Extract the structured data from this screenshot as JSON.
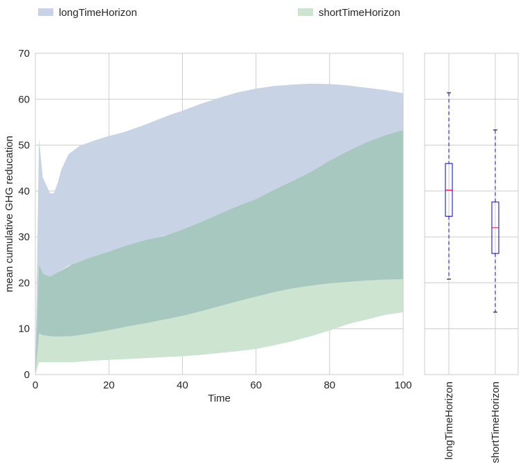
{
  "legend": {
    "placement": "top",
    "items": [
      {
        "label": "longTimeHorizon",
        "color": "#c8d3e6"
      },
      {
        "label": "shortTimeHorizon",
        "color": "#cce4d0"
      }
    ]
  },
  "chart_data": [
    {
      "type": "area",
      "xlabel": "Time",
      "ylabel": "mean cumulative GHG reducation",
      "xlim": [
        0,
        100
      ],
      "ylim": [
        0,
        70
      ],
      "xticks": [
        0,
        20,
        40,
        60,
        80,
        100
      ],
      "yticks": [
        0,
        10,
        20,
        30,
        40,
        50,
        60,
        70
      ],
      "grid": true,
      "colors": {
        "longTimeHorizon": "#c8d3e6",
        "shortTimeHorizon": "#cce4d0",
        "overlap": "#a6c8bf"
      },
      "series": [
        {
          "name": "longTimeHorizon",
          "x": [
            0,
            1,
            2,
            4,
            5,
            6,
            7,
            9,
            12,
            16,
            20,
            24,
            30,
            36,
            40,
            45,
            50,
            55,
            60,
            65,
            70,
            75,
            80,
            85,
            90,
            95,
            100
          ],
          "upper": [
            0,
            51.5,
            43,
            39.5,
            39.5,
            41.5,
            44.5,
            48,
            49.8,
            51,
            52,
            52.8,
            54.5,
            56.4,
            57.5,
            59,
            60.3,
            61.5,
            62.3,
            62.9,
            63.2,
            63.4,
            63.3,
            63,
            62.5,
            62,
            61.3
          ],
          "lower": [
            0,
            24,
            22,
            21.3,
            21.3,
            22,
            22.7,
            23.7,
            24.6,
            25.7,
            26.8,
            27.8,
            29.2,
            30.5,
            31.6,
            33.2,
            35,
            36.7,
            38.2,
            40.3,
            42.2,
            44.2,
            46.6,
            48.7,
            50.6,
            52.1,
            53.3
          ]
        },
        {
          "name": "shortTimeHorizon",
          "x": [
            0,
            1,
            2,
            4,
            6,
            10,
            15,
            20,
            25,
            30,
            35,
            40,
            45,
            50,
            55,
            60,
            65,
            70,
            75,
            80,
            85,
            90,
            95,
            100
          ],
          "upper": [
            0,
            24,
            22,
            21.3,
            22.2,
            24,
            25.5,
            26.8,
            28.2,
            29.3,
            30.2,
            31.6,
            33.2,
            35,
            36.7,
            38.2,
            40.3,
            42.2,
            44.2,
            46.6,
            48.7,
            50.6,
            52.1,
            53.3
          ],
          "mid": [
            0,
            9,
            8.6,
            8.4,
            8.3,
            8.4,
            9,
            9.7,
            10.5,
            11.2,
            12,
            12.8,
            13.8,
            14.9,
            16,
            17,
            18,
            18.8,
            19.4,
            19.9,
            20.2,
            20.5,
            20.7,
            20.8
          ],
          "lower": [
            0,
            2.7,
            2.7,
            2.7,
            2.7,
            2.7,
            3,
            3.2,
            3.4,
            3.6,
            3.8,
            4,
            4.3,
            4.7,
            5.1,
            5.6,
            6.4,
            7.3,
            8.4,
            9.6,
            11,
            12,
            13,
            13.6
          ]
        }
      ]
    },
    {
      "type": "box",
      "ylim": [
        0,
        70
      ],
      "categories": [
        "longTimeHorizon",
        "shortTimeHorizon"
      ],
      "grid": true,
      "boxes": [
        {
          "name": "longTimeHorizon",
          "whisker_low": 20.8,
          "q1": 34.5,
          "median": 40.2,
          "q3": 46,
          "whisker_high": 61.4
        },
        {
          "name": "shortTimeHorizon",
          "whisker_low": 13.6,
          "q1": 26.4,
          "median": 32,
          "q3": 37.6,
          "whisker_high": 53.3
        }
      ],
      "colors": {
        "box": "#0000cc",
        "median": "#e8004c",
        "whisker": "#0000cc"
      }
    }
  ]
}
